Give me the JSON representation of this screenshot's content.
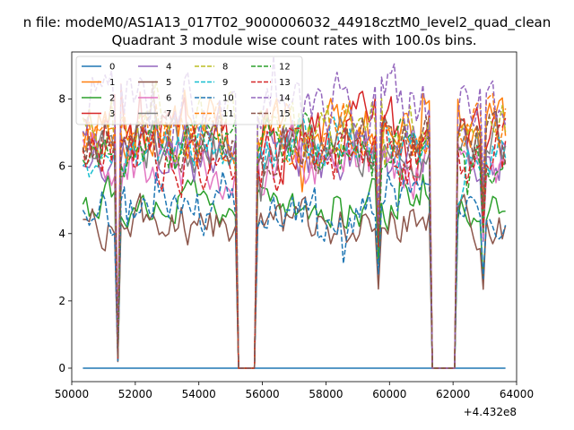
{
  "chart_data": {
    "type": "line",
    "suptitle": "n file: modeM0/AS1A13_017T02_9000006032_44918cztM0_level2_quad_clean",
    "title": "Quadrant 3 module wise count rates with 100.0s bins.",
    "xlabel": "",
    "ylabel": "",
    "x_offset_label": "+4.432e8",
    "xlim": [
      50000,
      64000
    ],
    "ylim": [
      -0.4,
      9.4
    ],
    "xticks": [
      50000,
      52000,
      54000,
      56000,
      58000,
      60000,
      62000,
      64000
    ],
    "xtick_labels": [
      "50000",
      "52000",
      "54000",
      "56000",
      "58000",
      "60000",
      "62000",
      "64000"
    ],
    "yticks": [
      0,
      2,
      4,
      6,
      8
    ],
    "ytick_labels": [
      "0",
      "2",
      "4",
      "6",
      "8"
    ],
    "x_start": 50350,
    "x_step": 100,
    "n_points": 134,
    "gaps": [
      {
        "from": 55250,
        "to": 55750
      },
      {
        "from": 61350,
        "to": 62050
      }
    ],
    "dips": [
      {
        "x": 51450,
        "depth": 0.95
      },
      {
        "x": 59650,
        "depth": 0.45
      },
      {
        "x": 62950,
        "depth": 0.35
      }
    ],
    "legend_location": "upper left",
    "series": [
      {
        "name": "0",
        "color": "#1f77b4",
        "dash": "solid",
        "base": 0.0,
        "noise": 0.0
      },
      {
        "name": "1",
        "color": "#ff7f0e",
        "dash": "solid",
        "base": 7.0,
        "noise": 0.45
      },
      {
        "name": "2",
        "color": "#2ca02c",
        "dash": "solid",
        "base": 4.9,
        "noise": 0.35
      },
      {
        "name": "3",
        "color": "#d62728",
        "dash": "solid",
        "base": 6.8,
        "noise": 0.55
      },
      {
        "name": "4",
        "color": "#9467bd",
        "dash": "solid",
        "base": 6.4,
        "noise": 0.45
      },
      {
        "name": "5",
        "color": "#8c564b",
        "dash": "solid",
        "base": 4.3,
        "noise": 0.35
      },
      {
        "name": "6",
        "color": "#e377c2",
        "dash": "solid",
        "base": 6.1,
        "noise": 0.45
      },
      {
        "name": "7",
        "color": "#7f7f7f",
        "dash": "solid",
        "base": 6.6,
        "noise": 0.4
      },
      {
        "name": "8",
        "color": "#bcbd22",
        "dash": "dashed",
        "base": 7.1,
        "noise": 0.45
      },
      {
        "name": "9",
        "color": "#17becf",
        "dash": "dashed",
        "base": 6.5,
        "noise": 0.4
      },
      {
        "name": "10",
        "color": "#1f77b4",
        "dash": "dashed",
        "base": 4.7,
        "noise": 0.35
      },
      {
        "name": "11",
        "color": "#ff7f0e",
        "dash": "dashed",
        "base": 6.9,
        "noise": 0.45
      },
      {
        "name": "12",
        "color": "#2ca02c",
        "dash": "dashed",
        "base": 6.5,
        "noise": 0.4
      },
      {
        "name": "13",
        "color": "#d62728",
        "dash": "dashed",
        "base": 6.3,
        "noise": 0.5
      },
      {
        "name": "14",
        "color": "#9467bd",
        "dash": "dashed",
        "base": 7.9,
        "noise": 0.55
      },
      {
        "name": "15",
        "color": "#8c564b",
        "dash": "dashed",
        "base": 6.7,
        "noise": 0.4
      }
    ]
  }
}
